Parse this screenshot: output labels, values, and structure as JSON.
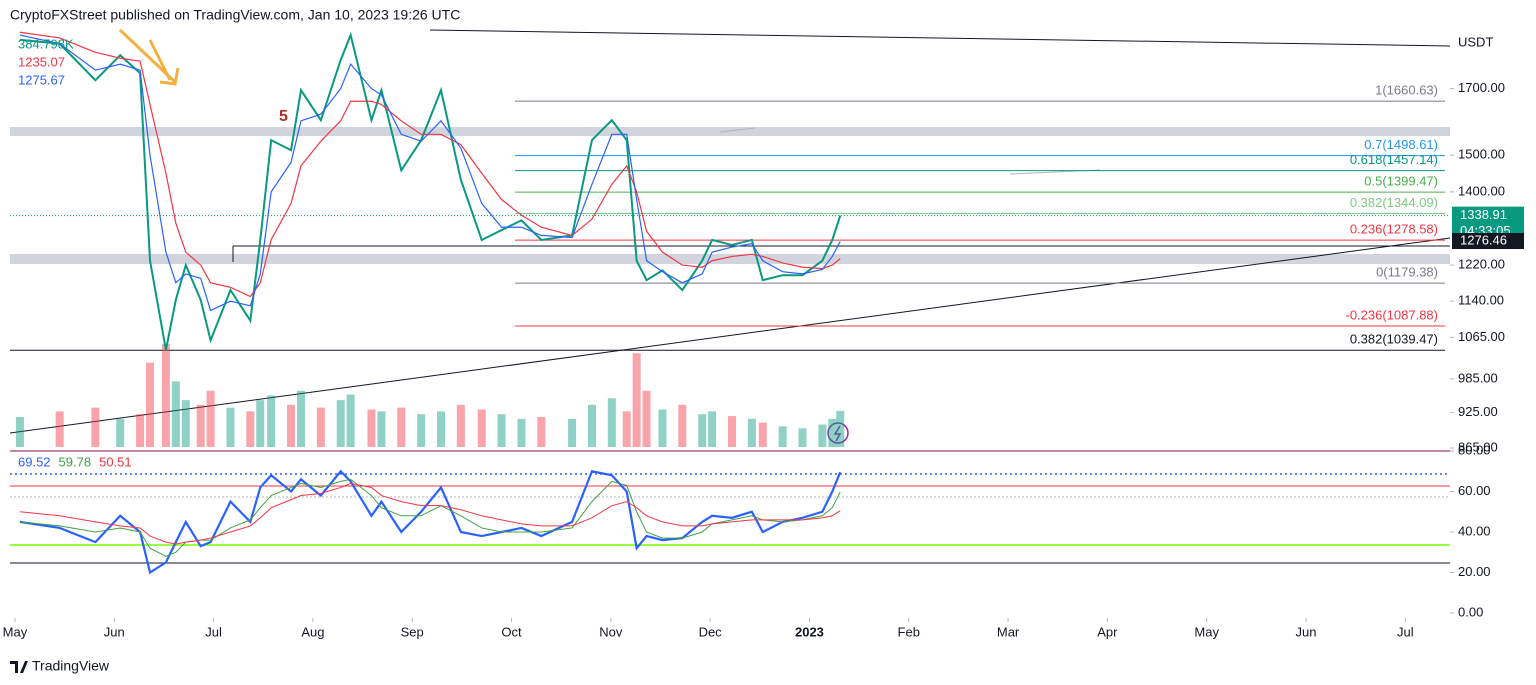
{
  "header": {
    "title": "CryptoFXStreet published on TradingView.com, Jan 10, 2023 19:26 UTC"
  },
  "footer": {
    "brand": "TradingView"
  },
  "chart_data": [
    {
      "type": "line",
      "currency": "USDT",
      "log_scale": true,
      "x": [
        0.05,
        0.45,
        0.81,
        1.06,
        1.26,
        1.36,
        1.52,
        1.62,
        1.72,
        1.87,
        1.97,
        2.17,
        2.37,
        2.47,
        2.58,
        2.78,
        2.88,
        3.08,
        3.28,
        3.38,
        3.59,
        3.69,
        3.89,
        4.09,
        4.29,
        4.49,
        4.7,
        4.9,
        5.1,
        5.3,
        5.61,
        5.81,
        6.01,
        6.16,
        6.26,
        6.36,
        6.52,
        6.72,
        6.92,
        7.02,
        7.22,
        7.42,
        7.53,
        7.73,
        7.93,
        8.13,
        8.23,
        8.31
      ],
      "xlim": [
        -0.05,
        14.45
      ],
      "xticks": [
        {
          "value": 0,
          "label": "May"
        },
        {
          "value": 1,
          "label": "Jun"
        },
        {
          "value": 2,
          "label": "Jul"
        },
        {
          "value": 3,
          "label": "Aug"
        },
        {
          "value": 4,
          "label": "Sep"
        },
        {
          "value": 5,
          "label": "Oct"
        },
        {
          "value": 6,
          "label": "Nov"
        },
        {
          "value": 7,
          "label": "Dec"
        },
        {
          "value": 8,
          "label": "2023"
        },
        {
          "value": 9,
          "label": "Feb"
        },
        {
          "value": 10,
          "label": "Mar"
        },
        {
          "value": 11,
          "label": "Apr"
        },
        {
          "value": 12,
          "label": "May"
        },
        {
          "value": 13,
          "label": "Jun"
        },
        {
          "value": 14,
          "label": "Jul"
        }
      ],
      "ylim": [
        865,
        1898
      ],
      "yticks": [
        {
          "value": 1700,
          "label": "1700.00"
        },
        {
          "value": 1500,
          "label": "1500.00"
        },
        {
          "value": 1400,
          "label": "1400.00"
        },
        {
          "value": 1220,
          "label": "1220.00"
        },
        {
          "value": 1140,
          "label": "1140.00"
        },
        {
          "value": 1065,
          "label": "1065.00"
        },
        {
          "value": 985,
          "label": "985.00"
        },
        {
          "value": 925,
          "label": "925.00"
        },
        {
          "value": 865,
          "label": "865.00"
        }
      ],
      "series": [
        {
          "color": "#089981",
          "values": [
            1863,
            1850,
            1727,
            1810,
            1750,
            1230,
            1040,
            1143,
            1220,
            1143,
            1059,
            1164,
            1099,
            1279,
            1543,
            1514,
            1695,
            1602,
            1794,
            1880,
            1602,
            1695,
            1458,
            1543,
            1695,
            1432,
            1279,
            1303,
            1327,
            1279,
            1290,
            1543,
            1602,
            1543,
            1230,
            1186,
            1208,
            1164,
            1230,
            1279,
            1267,
            1279,
            1186,
            1197,
            1197,
            1230,
            1279,
            1338.91
          ]
        },
        {
          "color": "#f23645",
          "last_label": "1235.07",
          "values": [
            1890,
            1870,
            1820,
            1800,
            1790,
            1650,
            1450,
            1320,
            1250,
            1220,
            1180,
            1170,
            1150,
            1180,
            1280,
            1370,
            1470,
            1540,
            1600,
            1660,
            1660,
            1650,
            1600,
            1560,
            1560,
            1530,
            1450,
            1380,
            1340,
            1310,
            1290,
            1330,
            1420,
            1470,
            1400,
            1300,
            1250,
            1220,
            1215,
            1230,
            1240,
            1245,
            1240,
            1225,
            1215,
            1212,
            1220,
            1235.07
          ]
        },
        {
          "color": "#2962ff",
          "last_label": "1275.67",
          "values": [
            1880,
            1850,
            1760,
            1780,
            1760,
            1500,
            1250,
            1180,
            1200,
            1190,
            1120,
            1140,
            1130,
            1200,
            1400,
            1480,
            1600,
            1620,
            1700,
            1780,
            1700,
            1680,
            1560,
            1540,
            1600,
            1520,
            1370,
            1310,
            1310,
            1290,
            1285,
            1420,
            1560,
            1560,
            1380,
            1230,
            1205,
            1180,
            1200,
            1250,
            1262,
            1270,
            1230,
            1205,
            1200,
            1210,
            1240,
            1275.67
          ]
        }
      ],
      "volume": {
        "color": "#089981",
        "last_label": "384.798K",
        "ylim": [
          0,
          1600
        ],
        "values": [
          320,
          380,
          420,
          300,
          350,
          900,
          1100,
          700,
          500,
          450,
          600,
          420,
          380,
          500,
          550,
          450,
          600,
          420,
          500,
          560,
          400,
          380,
          420,
          350,
          380,
          450,
          400,
          350,
          300,
          320,
          300,
          450,
          520,
          380,
          1000,
          600,
          400,
          450,
          350,
          380,
          330,
          300,
          260,
          220,
          200,
          240,
          300,
          384.798
        ]
      },
      "fib_levels": [
        {
          "value": 1660.63,
          "label": "1(1660.63)",
          "color": "#787b86"
        },
        {
          "value": 1498.61,
          "label": "0.7(1498.61)",
          "color": "#2196f3"
        },
        {
          "value": 1457.14,
          "label": "0.618(1457.14)",
          "color": "#089981"
        },
        {
          "value": 1399.47,
          "label": "0.5(1399.47)",
          "color": "#4caf50"
        },
        {
          "value": 1344.09,
          "label": "0.382(1344.09)",
          "color": "#81c784"
        },
        {
          "value": 1278.58,
          "label": "0.236(1278.58)",
          "color": "#f23645"
        },
        {
          "value": 1179.38,
          "label": "0(1179.38)",
          "color": "#787b86"
        },
        {
          "value": 1087.88,
          "label": "-0.236(1087.88)",
          "color": "#f23645"
        },
        {
          "value": 1039.47,
          "label": "0.382(1039.47)",
          "color": "#131722"
        }
      ],
      "price_labels": [
        {
          "value": 1338.91,
          "label": "1338.91",
          "color": "#089981"
        },
        {
          "value": 1276.46,
          "label": "1276.46",
          "color": "#131722"
        }
      ],
      "countdown": "04:33:05"
    },
    {
      "type": "line",
      "x": [
        0.05,
        0.45,
        0.81,
        1.06,
        1.26,
        1.36,
        1.52,
        1.62,
        1.72,
        1.87,
        1.97,
        2.17,
        2.37,
        2.47,
        2.58,
        2.78,
        2.88,
        3.08,
        3.28,
        3.38,
        3.59,
        3.69,
        3.89,
        4.09,
        4.29,
        4.49,
        4.7,
        4.9,
        5.1,
        5.3,
        5.61,
        5.81,
        6.01,
        6.16,
        6.26,
        6.36,
        6.52,
        6.72,
        6.92,
        7.02,
        7.22,
        7.42,
        7.53,
        7.73,
        7.93,
        8.13,
        8.23,
        8.31
      ],
      "xlim": [
        -0.05,
        14.45
      ],
      "ylim": [
        0,
        80
      ],
      "yticks": [
        {
          "value": 80,
          "label": "80.00"
        },
        {
          "value": 60,
          "label": "60.00"
        },
        {
          "value": 40,
          "label": "40.00"
        },
        {
          "value": 20,
          "label": "20.00"
        },
        {
          "value": 0,
          "label": "0.00"
        }
      ],
      "series": [
        {
          "color": "#2962ff",
          "last_label": "69.52",
          "values": [
            45,
            42,
            35,
            48,
            40,
            20,
            25,
            35,
            45,
            33,
            35,
            55,
            45,
            62,
            68,
            60,
            66,
            58,
            70,
            65,
            48,
            55,
            40,
            50,
            62,
            40,
            38,
            40,
            42,
            38,
            45,
            70,
            68,
            60,
            32,
            38,
            36,
            37,
            45,
            48,
            47,
            50,
            40,
            45,
            47,
            50,
            60,
            69.52
          ]
        },
        {
          "color": "#43a047",
          "last_label": "59.78",
          "values": [
            45,
            43,
            40,
            42,
            40,
            32,
            28,
            30,
            35,
            36,
            36,
            42,
            46,
            52,
            58,
            62,
            64,
            62,
            65,
            66,
            58,
            52,
            48,
            48,
            53,
            48,
            42,
            40,
            40,
            40,
            42,
            55,
            65,
            63,
            50,
            40,
            37,
            37,
            40,
            44,
            46,
            48,
            46,
            45,
            46,
            48,
            52,
            59.78
          ]
        },
        {
          "color": "#f23645",
          "last_label": "50.51",
          "values": [
            50,
            48,
            45,
            43,
            42,
            38,
            35,
            34,
            35,
            36,
            37,
            40,
            43,
            47,
            52,
            56,
            58,
            59,
            62,
            64,
            62,
            58,
            55,
            53,
            53,
            51,
            48,
            46,
            44,
            43,
            43,
            47,
            53,
            55,
            52,
            48,
            45,
            43,
            43,
            44,
            45,
            46,
            46,
            46,
            46,
            47,
            48,
            50.51
          ]
        }
      ]
    }
  ]
}
